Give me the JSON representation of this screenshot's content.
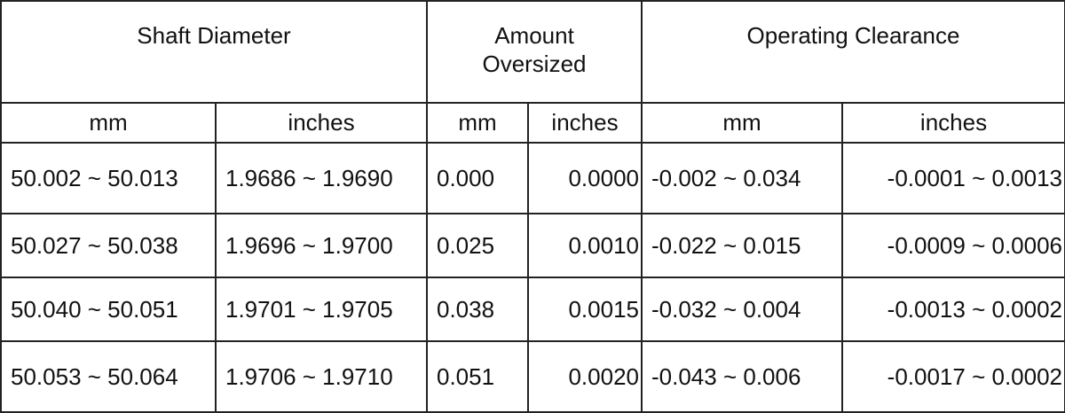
{
  "table": {
    "header": {
      "groups": [
        "Shaft Diameter",
        "Amount Oversized",
        "Operating Clearance"
      ],
      "units": [
        "mm",
        "inches",
        "mm",
        "inches",
        "mm",
        "inches"
      ]
    },
    "rows": [
      [
        "50.002 ~ 50.013",
        "1.9686 ~ 1.9690",
        "0.000",
        "0.0000",
        "-0.002 ~ 0.034",
        "-0.0001 ~ 0.0013"
      ],
      [
        "50.027 ~ 50.038",
        "1.9696 ~ 1.9700",
        "0.025",
        "0.0010",
        "-0.022 ~ 0.015",
        "-0.0009 ~ 0.0006"
      ],
      [
        "50.040 ~ 50.051",
        "1.9701 ~ 1.9705",
        "0.038",
        "0.0015",
        "-0.032 ~ 0.004",
        "-0.0013 ~ 0.0002"
      ],
      [
        "50.053 ~ 50.064",
        "1.9706 ~ 1.9710",
        "0.051",
        "0.0020",
        "-0.043 ~ 0.006",
        "-0.0017 ~ 0.0002"
      ]
    ]
  }
}
